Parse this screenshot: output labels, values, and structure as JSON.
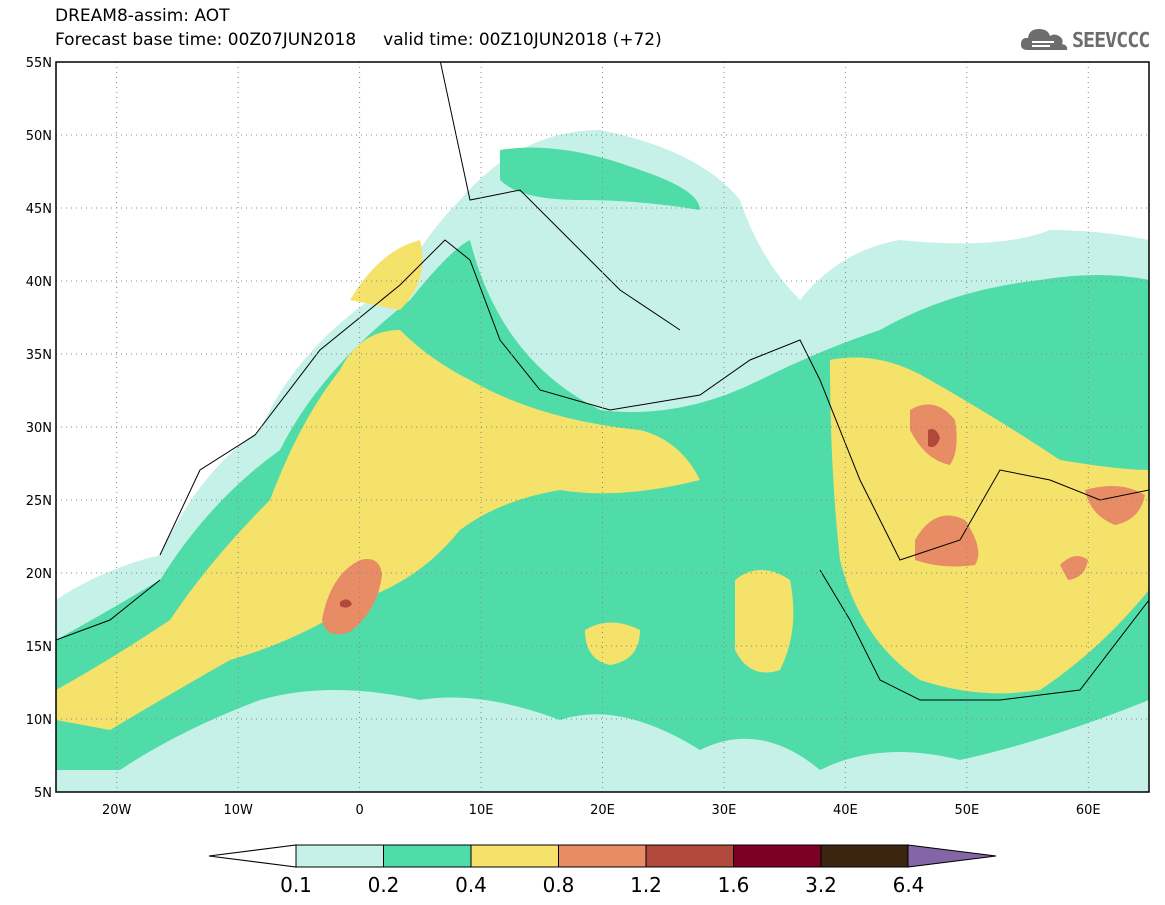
{
  "header": {
    "title_line1": "DREAM8-assim: AOT",
    "title_line2": "Forecast base time: 00Z07JUN2018     valid time: 00Z10JUN2018 (+72)",
    "logo_text": "SEEVCCC"
  },
  "map": {
    "projection": "lat-lon",
    "lon_range": [
      -25,
      65
    ],
    "lat_range": [
      5,
      55
    ],
    "lon_ticks": [
      "20W",
      "10W",
      "0",
      "10E",
      "20E",
      "30E",
      "40E",
      "50E",
      "60E"
    ],
    "lat_ticks": [
      "55N",
      "50N",
      "45N",
      "40N",
      "35N",
      "30N",
      "25N",
      "20N",
      "15N",
      "10N",
      "5N"
    ],
    "gridlines": "dotted"
  },
  "colorbar": {
    "labels": [
      "0.1",
      "0.2",
      "0.4",
      "0.8",
      "1.2",
      "1.6",
      "3.2",
      "6.4"
    ],
    "colors": [
      "#c6f1e8",
      "#50dca8",
      "#f5e26b",
      "#e88c66",
      "#b0493c",
      "#7a0024",
      "#3b2410",
      "#8466a6"
    ],
    "low_arrow_color": "#ffffff",
    "high_arrow_color": "#8466a6"
  }
}
